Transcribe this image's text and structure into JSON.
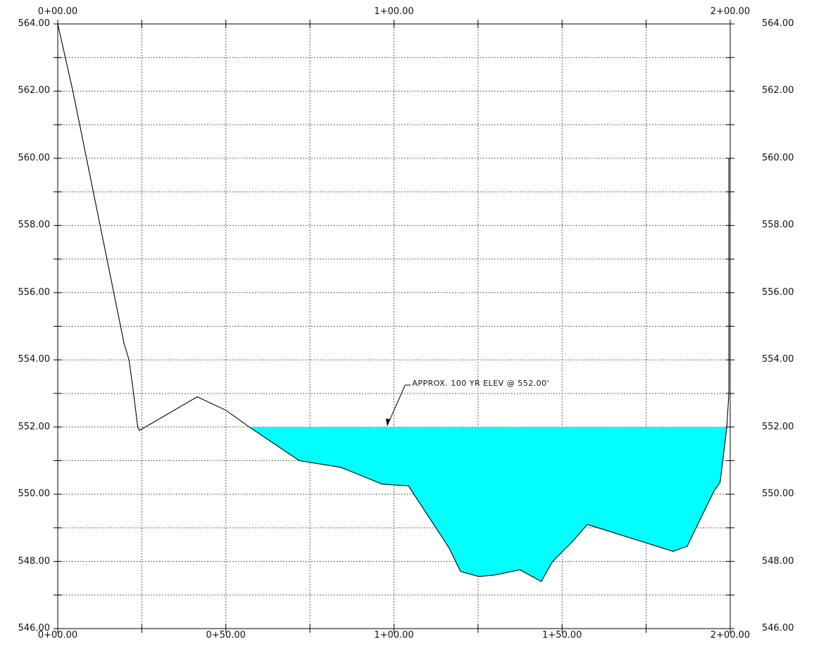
{
  "chart_data": {
    "type": "area",
    "title": "",
    "xlabel": "",
    "ylabel": "",
    "xlim": [
      0,
      200
    ],
    "ylim": [
      546,
      564
    ],
    "grid": true,
    "x_tick_values": [
      0,
      25,
      50,
      75,
      100,
      125,
      150,
      175,
      200
    ],
    "y_tick_values": [
      546,
      547,
      548,
      549,
      550,
      551,
      552,
      553,
      554,
      555,
      556,
      557,
      558,
      559,
      560,
      561,
      562,
      563,
      564
    ],
    "top_ticks": [
      {
        "x": 0,
        "label": "0+00.00"
      },
      {
        "x": 100,
        "label": "1+00.00"
      },
      {
        "x": 200,
        "label": "2+00.00"
      }
    ],
    "bottom_ticks": [
      {
        "x": 0,
        "label": "0+00.00"
      },
      {
        "x": 50,
        "label": "0+50.00"
      },
      {
        "x": 100,
        "label": "1+00.00"
      },
      {
        "x": 150,
        "label": "1+50.00"
      },
      {
        "x": 200,
        "label": "2+00.00"
      }
    ],
    "y_ticks": [
      {
        "y": 546,
        "label": "546.00"
      },
      {
        "y": 548,
        "label": "548.00"
      },
      {
        "y": 550,
        "label": "550.00"
      },
      {
        "y": 552,
        "label": "552.00"
      },
      {
        "y": 554,
        "label": "554.00"
      },
      {
        "y": 556,
        "label": "556.00"
      },
      {
        "y": 558,
        "label": "558.00"
      },
      {
        "y": 560,
        "label": "560.00"
      },
      {
        "y": 562,
        "label": "562.00"
      },
      {
        "y": 564,
        "label": "564.00"
      }
    ],
    "series": [
      {
        "kind": "ground-profile",
        "points": [
          [
            0,
            564
          ],
          [
            4.5,
            562
          ],
          [
            19.7,
            554.5
          ],
          [
            21.2,
            554
          ],
          [
            22.3,
            553.2
          ],
          [
            23.8,
            552
          ],
          [
            24.3,
            551.9
          ],
          [
            41.5,
            552.9
          ],
          [
            50,
            552.5
          ],
          [
            57,
            552
          ],
          [
            71.8,
            551
          ],
          [
            84.2,
            550.8
          ],
          [
            96.5,
            550.3
          ],
          [
            104.3,
            550.25
          ],
          [
            116.4,
            548.4
          ],
          [
            119.8,
            547.7
          ],
          [
            125.3,
            547.55
          ],
          [
            130.2,
            547.6
          ],
          [
            137.5,
            547.75
          ],
          [
            143.8,
            547.4
          ],
          [
            147.2,
            548
          ],
          [
            153.2,
            548.6
          ],
          [
            157.5,
            549.1
          ],
          [
            183,
            548.3
          ],
          [
            187.2,
            548.45
          ],
          [
            195.2,
            550.1
          ],
          [
            197,
            550.35
          ],
          [
            199,
            552
          ],
          [
            199.6,
            553
          ],
          [
            199.6,
            560
          ]
        ]
      },
      {
        "kind": "water-surface",
        "elevation": 552,
        "from_x": 57,
        "to_x": 199,
        "color": "#00ffff"
      }
    ],
    "annotations": [
      {
        "text": "APPROX. 100 YR ELEV @ 552.00'",
        "point": [
          98,
          552
        ],
        "text_at": [
          105,
          553.25
        ]
      }
    ]
  }
}
